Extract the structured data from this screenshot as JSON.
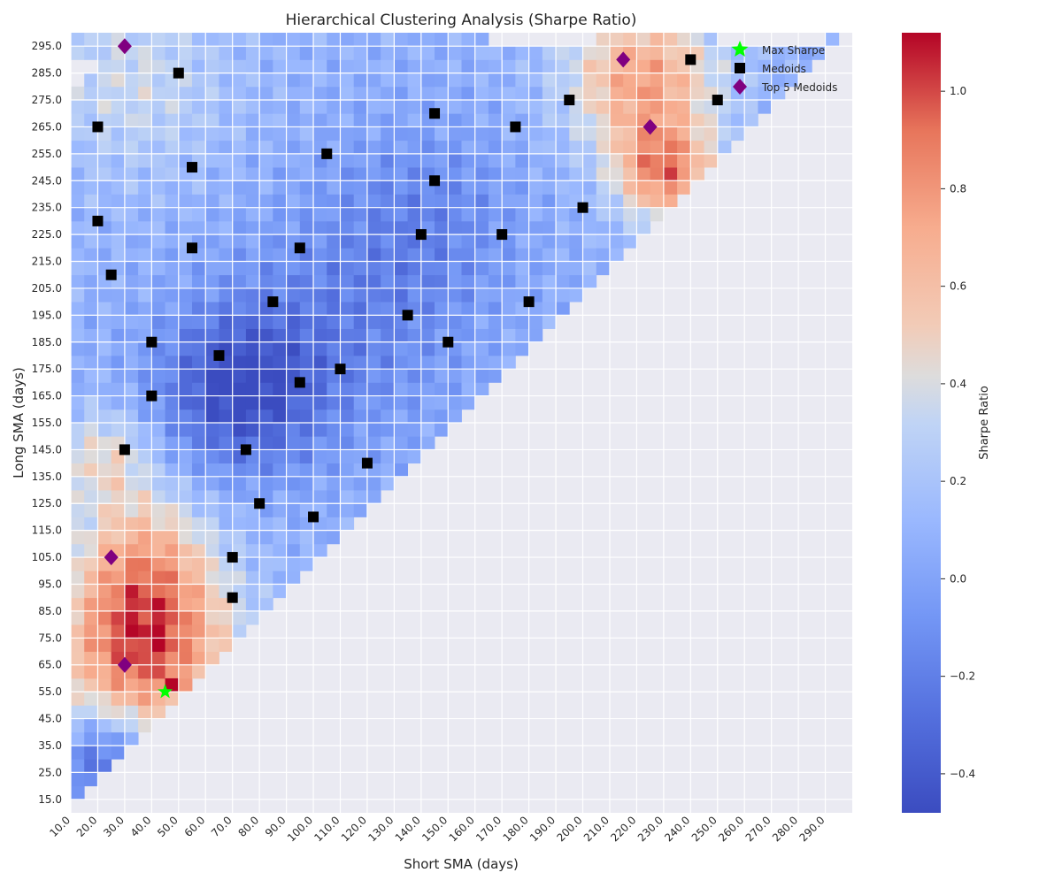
{
  "chart_data": {
    "type": "heatmap",
    "title": "Hierarchical Clustering Analysis (Sharpe Ratio)",
    "xlabel": "Short SMA (days)",
    "ylabel": "Long SMA (days)",
    "x_ticks": [
      "10.0",
      "20.0",
      "30.0",
      "40.0",
      "50.0",
      "60.0",
      "70.0",
      "80.0",
      "90.0",
      "100.0",
      "110.0",
      "120.0",
      "130.0",
      "140.0",
      "150.0",
      "160.0",
      "170.0",
      "180.0",
      "190.0",
      "200.0",
      "210.0",
      "220.0",
      "230.0",
      "240.0",
      "250.0",
      "260.0",
      "270.0",
      "280.0",
      "290.0"
    ],
    "y_ticks": [
      "15.0",
      "25.0",
      "35.0",
      "45.0",
      "55.0",
      "65.0",
      "75.0",
      "85.0",
      "95.0",
      "105.0",
      "115.0",
      "125.0",
      "135.0",
      "145.0",
      "155.0",
      "165.0",
      "175.0",
      "185.0",
      "195.0",
      "205.0",
      "215.0",
      "225.0",
      "235.0",
      "245.0",
      "255.0",
      "265.0",
      "275.0",
      "285.0",
      "295.0"
    ],
    "x_range": [
      10,
      300
    ],
    "y_range": [
      10,
      300
    ],
    "cell_step": 5,
    "grid": true,
    "colormap": "coolwarm",
    "colorbar": {
      "label": "Sharpe Ratio",
      "range": [
        -0.48,
        1.12
      ],
      "ticks": [
        "1.0",
        "0.8",
        "0.6",
        "0.4",
        "0.2",
        "0.0",
        "−0.2",
        "−0.4"
      ],
      "tick_values": [
        1.0,
        0.8,
        0.6,
        0.4,
        0.2,
        0.0,
        -0.2,
        -0.4
      ]
    },
    "regions": [
      {
        "cx": 35,
        "cy": 70,
        "r": 32,
        "value": 1.0
      },
      {
        "cx": 35,
        "cy": 105,
        "r": 25,
        "value": 0.5
      },
      {
        "cx": 20,
        "cy": 140,
        "r": 18,
        "value": 0.45
      },
      {
        "cx": 30,
        "cy": 280,
        "r": 35,
        "value": 0.35
      },
      {
        "cx": 220,
        "cy": 280,
        "r": 28,
        "value": 0.75
      },
      {
        "cx": 228,
        "cy": 245,
        "r": 18,
        "value": 0.8
      },
      {
        "cx": 70,
        "cy": 165,
        "r": 30,
        "value": -0.45
      },
      {
        "cx": 110,
        "cy": 190,
        "r": 45,
        "value": -0.15
      },
      {
        "cx": 140,
        "cy": 230,
        "r": 35,
        "value": -0.12
      },
      {
        "cx": 20,
        "cy": 28,
        "r": 15,
        "value": -0.35
      }
    ],
    "max_sharpe": {
      "label": "Max Sharpe",
      "x": 45,
      "y": 55,
      "value": 1.12
    },
    "medoids": {
      "label": "Medoids",
      "points": [
        [
          50,
          285
        ],
        [
          240,
          290
        ],
        [
          20,
          265
        ],
        [
          145,
          270
        ],
        [
          195,
          275
        ],
        [
          250,
          275
        ],
        [
          175,
          265
        ],
        [
          105,
          255
        ],
        [
          55,
          250
        ],
        [
          145,
          245
        ],
        [
          200,
          235
        ],
        [
          20,
          230
        ],
        [
          140,
          225
        ],
        [
          170,
          225
        ],
        [
          55,
          220
        ],
        [
          95,
          220
        ],
        [
          25,
          210
        ],
        [
          85,
          200
        ],
        [
          180,
          200
        ],
        [
          135,
          195
        ],
        [
          40,
          185
        ],
        [
          150,
          185
        ],
        [
          65,
          180
        ],
        [
          110,
          175
        ],
        [
          95,
          170
        ],
        [
          40,
          165
        ],
        [
          30,
          145
        ],
        [
          75,
          145
        ],
        [
          120,
          140
        ],
        [
          80,
          125
        ],
        [
          100,
          120
        ],
        [
          70,
          105
        ],
        [
          70,
          90
        ]
      ]
    },
    "top_medoids": {
      "label": "Top 5 Medoids",
      "points": [
        [
          30,
          295
        ],
        [
          215,
          290
        ],
        [
          225,
          265
        ],
        [
          25,
          105
        ],
        [
          30,
          65
        ]
      ]
    },
    "legend_position": "top-right",
    "colors": {
      "max_sharpe": "#00ff00",
      "medoid": "#000000",
      "top_medoid": "#800080",
      "background": "#eaeaf2",
      "gridline": "#ffffff"
    }
  }
}
